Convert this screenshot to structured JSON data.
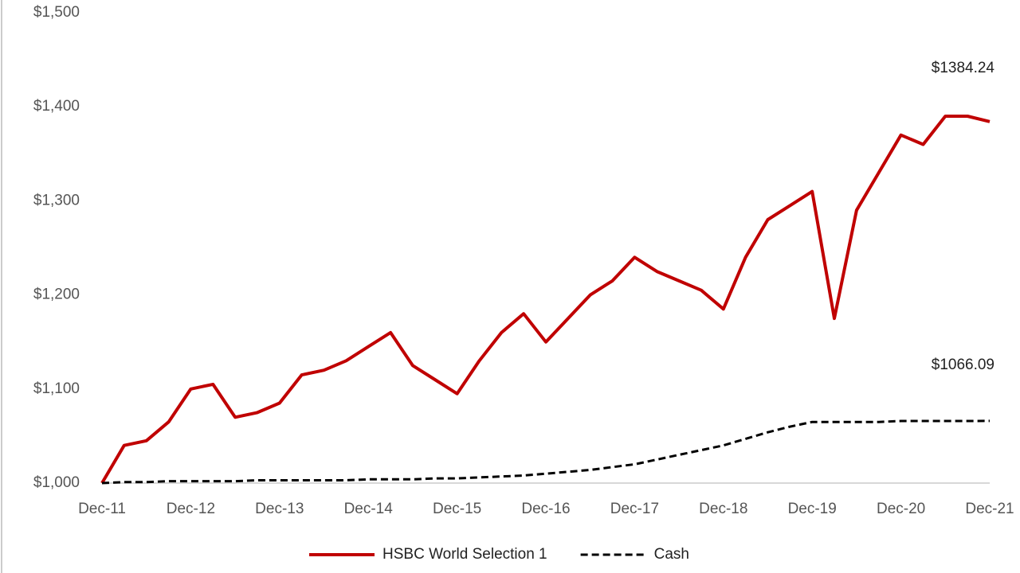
{
  "chart_data": {
    "type": "line",
    "categories": [
      "Dec-11",
      null,
      null,
      null,
      "Dec-12",
      null,
      null,
      null,
      "Dec-13",
      null,
      null,
      null,
      "Dec-14",
      null,
      null,
      null,
      "Dec-15",
      null,
      null,
      null,
      "Dec-16",
      null,
      null,
      null,
      "Dec-17",
      null,
      null,
      null,
      "Dec-18",
      null,
      null,
      null,
      "Dec-19",
      null,
      null,
      null,
      "Dec-20",
      null,
      null,
      null,
      "Dec-21"
    ],
    "series": [
      {
        "name": "HSBC World Selection 1",
        "color": "#c00000",
        "dash": false,
        "values": [
          1000,
          1040,
          1045,
          1065,
          1100,
          1105,
          1070,
          1075,
          1085,
          1115,
          1120,
          1130,
          1145,
          1160,
          1125,
          1110,
          1095,
          1130,
          1160,
          1180,
          1150,
          1175,
          1200,
          1215,
          1240,
          1225,
          1215,
          1205,
          1185,
          1240,
          1280,
          1295,
          1310,
          1175,
          1290,
          1330,
          1370,
          1360,
          1390,
          1390,
          1384.24
        ],
        "value_labels": [
          null,
          null,
          null,
          null,
          null,
          null,
          null,
          null,
          null,
          null,
          null,
          null,
          null,
          null,
          null,
          null,
          null,
          null,
          null,
          null,
          null,
          null,
          null,
          null,
          null,
          null,
          null,
          null,
          null,
          null,
          null,
          null,
          null,
          null,
          null,
          null,
          null,
          null,
          null,
          null,
          "$1384.24"
        ]
      },
      {
        "name": "Cash",
        "color": "#000000",
        "dash": true,
        "values": [
          1000,
          1001,
          1001,
          1002,
          1002,
          1002,
          1002,
          1003,
          1003,
          1003,
          1003,
          1003,
          1004,
          1004,
          1004,
          1005,
          1005,
          1006,
          1007,
          1008,
          1010,
          1012,
          1014,
          1017,
          1020,
          1025,
          1030,
          1035,
          1040,
          1047,
          1054,
          1060,
          1065,
          1065,
          1065,
          1065,
          1066,
          1066,
          1066,
          1066,
          1066.09
        ],
        "value_labels": [
          null,
          null,
          null,
          null,
          null,
          null,
          null,
          null,
          null,
          null,
          null,
          null,
          null,
          null,
          null,
          null,
          null,
          null,
          null,
          null,
          null,
          null,
          null,
          null,
          null,
          null,
          null,
          null,
          null,
          null,
          null,
          null,
          null,
          null,
          null,
          null,
          null,
          null,
          null,
          null,
          "$1066.09"
        ]
      }
    ],
    "ylim": [
      1000,
      1500
    ],
    "yticks": [
      {
        "value": 1000,
        "label": "$1,000"
      },
      {
        "value": 1100,
        "label": "$1,100"
      },
      {
        "value": 1200,
        "label": "$1,200"
      },
      {
        "value": 1300,
        "label": "$1,300"
      },
      {
        "value": 1400,
        "label": "$1,400"
      },
      {
        "value": 1500,
        "label": "$1,500"
      }
    ],
    "grid": false,
    "legend": "bottom"
  }
}
